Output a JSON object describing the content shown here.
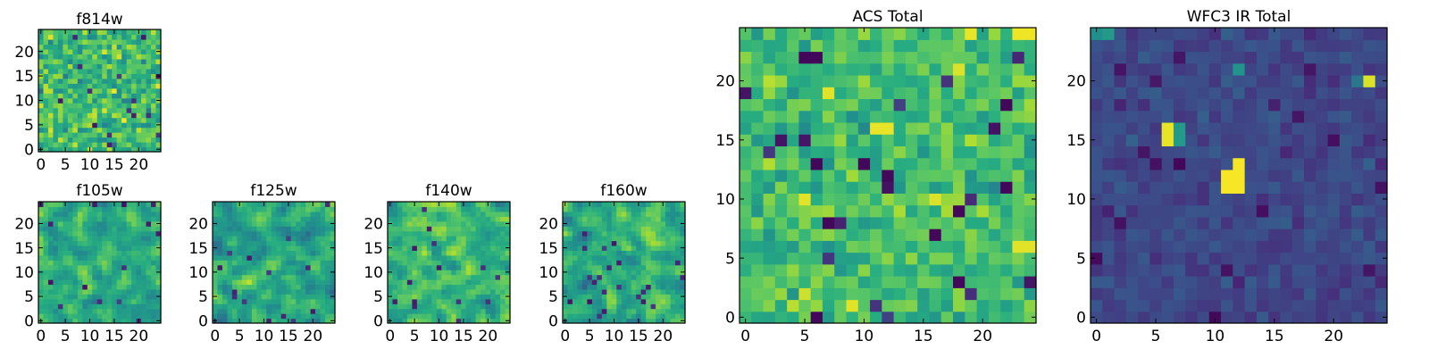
{
  "chart_data": [
    {
      "type": "heatmap",
      "id": "f814w",
      "title": "f814w",
      "colormap": "viridis",
      "grid_size": 25,
      "xlim": [
        -0.5,
        24.5
      ],
      "ylim": [
        -0.5,
        24.5
      ],
      "xticks": [
        0,
        5,
        10,
        15,
        20
      ],
      "yticks": [
        0,
        5,
        10,
        15,
        20
      ],
      "xtick_labels": [
        "0",
        "5",
        "10",
        "15",
        "20"
      ],
      "ytick_labels": [
        "0",
        "5",
        "10",
        "15",
        "20"
      ],
      "value_range": [
        0,
        1
      ],
      "pattern": {
        "seed": 11,
        "mean": 0.68,
        "spread": 0.22,
        "smooth": 0
      }
    },
    {
      "type": "heatmap",
      "id": "f105w",
      "title": "f105w",
      "colormap": "viridis",
      "grid_size": 25,
      "xlim": [
        -0.5,
        24.5
      ],
      "ylim": [
        -0.5,
        24.5
      ],
      "xticks": [
        0,
        5,
        10,
        15,
        20
      ],
      "yticks": [
        0,
        5,
        10,
        15,
        20
      ],
      "xtick_labels": [
        "0",
        "5",
        "10",
        "15",
        "20"
      ],
      "ytick_labels": [
        "0",
        "5",
        "10",
        "15",
        "20"
      ],
      "value_range": [
        0,
        1
      ],
      "pattern": {
        "seed": 23,
        "mean": 0.62,
        "spread": 0.24,
        "smooth": 1
      }
    },
    {
      "type": "heatmap",
      "id": "f125w",
      "title": "f125w",
      "colormap": "viridis",
      "grid_size": 25,
      "xlim": [
        -0.5,
        24.5
      ],
      "ylim": [
        -0.5,
        24.5
      ],
      "xticks": [
        0,
        5,
        10,
        15,
        20
      ],
      "yticks": [
        0,
        5,
        10,
        15,
        20
      ],
      "xtick_labels": [
        "0",
        "5",
        "10",
        "15",
        "20"
      ],
      "ytick_labels": [
        "0",
        "5",
        "10",
        "15",
        "20"
      ],
      "value_range": [
        0,
        1
      ],
      "pattern": {
        "seed": 37,
        "mean": 0.6,
        "spread": 0.25,
        "smooth": 1
      }
    },
    {
      "type": "heatmap",
      "id": "f140w",
      "title": "f140w",
      "colormap": "viridis",
      "grid_size": 25,
      "xlim": [
        -0.5,
        24.5
      ],
      "ylim": [
        -0.5,
        24.5
      ],
      "xticks": [
        0,
        5,
        10,
        15,
        20
      ],
      "yticks": [
        0,
        5,
        10,
        15,
        20
      ],
      "xtick_labels": [
        "0",
        "5",
        "10",
        "15",
        "20"
      ],
      "ytick_labels": [
        "0",
        "5",
        "10",
        "15",
        "20"
      ],
      "value_range": [
        0,
        1
      ],
      "pattern": {
        "seed": 41,
        "mean": 0.66,
        "spread": 0.24,
        "smooth": 1
      }
    },
    {
      "type": "heatmap",
      "id": "f160w",
      "title": "f160w",
      "colormap": "viridis",
      "grid_size": 25,
      "xlim": [
        -0.5,
        24.5
      ],
      "ylim": [
        -0.5,
        24.5
      ],
      "xticks": [
        0,
        5,
        10,
        15,
        20
      ],
      "yticks": [
        0,
        5,
        10,
        15,
        20
      ],
      "xtick_labels": [
        "0",
        "5",
        "10",
        "15",
        "20"
      ],
      "ytick_labels": [
        "0",
        "5",
        "10",
        "15",
        "20"
      ],
      "value_range": [
        0,
        1
      ],
      "pattern": {
        "seed": 53,
        "mean": 0.63,
        "spread": 0.25,
        "smooth": 1
      }
    },
    {
      "type": "heatmap",
      "id": "acs_total",
      "title": "ACS Total",
      "colormap": "viridis",
      "grid_size": 25,
      "xlim": [
        -0.5,
        24.5
      ],
      "ylim": [
        -0.5,
        24.5
      ],
      "xticks": [
        0,
        5,
        10,
        15,
        20
      ],
      "yticks": [
        0,
        5,
        10,
        15,
        20
      ],
      "xtick_labels": [
        "0",
        "5",
        "10",
        "15",
        "20"
      ],
      "ytick_labels": [
        "0",
        "5",
        "10",
        "15",
        "20"
      ],
      "value_range": [
        0,
        1
      ],
      "pattern": {
        "seed": 67,
        "mean": 0.7,
        "spread": 0.16,
        "smooth": 0
      },
      "features": [
        {
          "x": 5,
          "y": 22,
          "value": 0.02
        },
        {
          "x": 6,
          "y": 22,
          "value": 0.02
        },
        {
          "x": 6,
          "y": 13,
          "value": 0.02
        },
        {
          "x": 10,
          "y": 13,
          "value": 0.02
        },
        {
          "x": 12,
          "y": 12,
          "value": 0.02
        },
        {
          "x": 7,
          "y": 8,
          "value": 0.02
        },
        {
          "x": 16,
          "y": 7,
          "value": 0.02
        },
        {
          "x": 22,
          "y": 18,
          "value": 0.02
        },
        {
          "x": 22,
          "y": 11,
          "value": 0.02
        },
        {
          "x": 18,
          "y": 9,
          "value": 0.02
        },
        {
          "x": 6,
          "y": 0,
          "value": 0.02
        },
        {
          "x": 18,
          "y": 3,
          "value": 0.02
        },
        {
          "x": 12,
          "y": 11,
          "value": 0.05
        },
        {
          "x": 23,
          "y": 24,
          "value": 0.98
        },
        {
          "x": 24,
          "y": 24,
          "value": 0.98
        },
        {
          "x": 19,
          "y": 24,
          "value": 0.97
        },
        {
          "x": 7,
          "y": 19,
          "value": 0.96
        },
        {
          "x": 11,
          "y": 16,
          "value": 0.97
        },
        {
          "x": 12,
          "y": 16,
          "value": 0.97
        },
        {
          "x": 5,
          "y": 10,
          "value": 0.96
        },
        {
          "x": 18,
          "y": 21,
          "value": 0.95
        },
        {
          "x": 24,
          "y": 6,
          "value": 0.96
        },
        {
          "x": 23,
          "y": 6,
          "value": 0.96
        },
        {
          "x": 9,
          "y": 1,
          "value": 0.96
        },
        {
          "x": 16,
          "y": 10,
          "value": 0.95
        }
      ]
    },
    {
      "type": "heatmap",
      "id": "wfc3_ir_total",
      "title": "WFC3 IR Total",
      "colormap": "viridis",
      "grid_size": 25,
      "xlim": [
        -0.5,
        24.5
      ],
      "ylim": [
        -0.5,
        24.5
      ],
      "xticks": [
        0,
        5,
        10,
        15,
        20
      ],
      "yticks": [
        0,
        5,
        10,
        15,
        20
      ],
      "xtick_labels": [
        "0",
        "5",
        "10",
        "15",
        "20"
      ],
      "ytick_labels": [
        "0",
        "5",
        "10",
        "15",
        "20"
      ],
      "value_range": [
        0,
        1
      ],
      "pattern": {
        "seed": 79,
        "mean": 0.22,
        "spread": 0.07,
        "smooth": 0
      },
      "features": [
        {
          "x": 1,
          "y": 24,
          "value": 0.55
        },
        {
          "x": 0,
          "y": 24,
          "value": 0.5
        },
        {
          "x": 6,
          "y": 15,
          "value": 0.97
        },
        {
          "x": 6,
          "y": 16,
          "value": 0.97
        },
        {
          "x": 7,
          "y": 15,
          "value": 0.55
        },
        {
          "x": 7,
          "y": 16,
          "value": 0.55
        },
        {
          "x": 11,
          "y": 11,
          "value": 0.99
        },
        {
          "x": 11,
          "y": 12,
          "value": 0.99
        },
        {
          "x": 12,
          "y": 11,
          "value": 0.99
        },
        {
          "x": 12,
          "y": 12,
          "value": 0.99
        },
        {
          "x": 12,
          "y": 13,
          "value": 0.99
        },
        {
          "x": 23,
          "y": 20,
          "value": 0.95
        },
        {
          "x": 12,
          "y": 21,
          "value": 0.52
        },
        {
          "x": 22,
          "y": 20,
          "value": 0.4
        },
        {
          "x": 7,
          "y": 13,
          "value": 0.02
        },
        {
          "x": 5,
          "y": 13,
          "value": 0.05
        },
        {
          "x": 4,
          "y": 14,
          "value": 0.06
        },
        {
          "x": 0,
          "y": 5,
          "value": 0.03
        },
        {
          "x": 2,
          "y": 8,
          "value": 0.05
        },
        {
          "x": 14,
          "y": 9,
          "value": 0.04
        },
        {
          "x": 10,
          "y": 0,
          "value": 0.02
        },
        {
          "x": 20,
          "y": 15,
          "value": 0.04
        },
        {
          "x": 17,
          "y": 17,
          "value": 0.06
        },
        {
          "x": 24,
          "y": 11,
          "value": 0.05
        },
        {
          "x": 18,
          "y": 21,
          "value": 0.06
        },
        {
          "x": 7,
          "y": 22,
          "value": 0.06
        }
      ]
    }
  ]
}
